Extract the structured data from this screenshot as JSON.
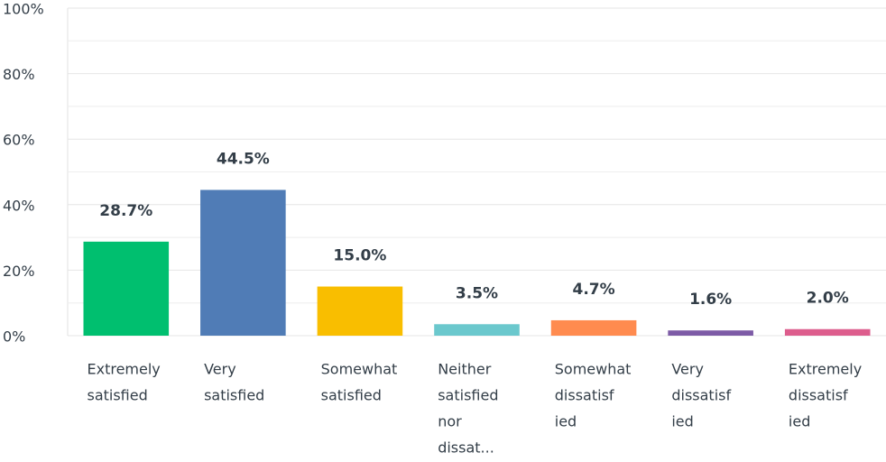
{
  "chart_data": {
    "type": "bar",
    "categories": [
      [
        "Extremely",
        "satisfied"
      ],
      [
        "Very",
        "satisfied"
      ],
      [
        "Somewhat",
        "satisfied"
      ],
      [
        "Neither",
        "satisfied",
        "nor",
        "dissat..."
      ],
      [
        "Somewhat",
        "dissatisf",
        "ied"
      ],
      [
        "Very",
        "dissatisf",
        "ied"
      ],
      [
        "Extremely",
        "dissatisf",
        "ied"
      ]
    ],
    "values": [
      28.7,
      44.5,
      15.0,
      3.5,
      4.7,
      1.6,
      2.0
    ],
    "value_labels": [
      "28.7%",
      "44.5%",
      "15.0%",
      "3.5%",
      "4.7%",
      "1.6%",
      "2.0%"
    ],
    "colors": [
      "#00bf6f",
      "#507cb6",
      "#f9be00",
      "#6bc8cd",
      "#ff8b4f",
      "#7d5ba6",
      "#dd5d8d"
    ],
    "ylim": [
      0,
      100
    ],
    "yticks": [
      {
        "value": 0,
        "label": "0%"
      },
      {
        "value": 20,
        "label": "20%"
      },
      {
        "value": 40,
        "label": "40%"
      },
      {
        "value": 60,
        "label": "60%"
      },
      {
        "value": 80,
        "label": "80%"
      },
      {
        "value": 100,
        "label": "100%"
      }
    ],
    "grid": true,
    "minor_grid": true
  }
}
